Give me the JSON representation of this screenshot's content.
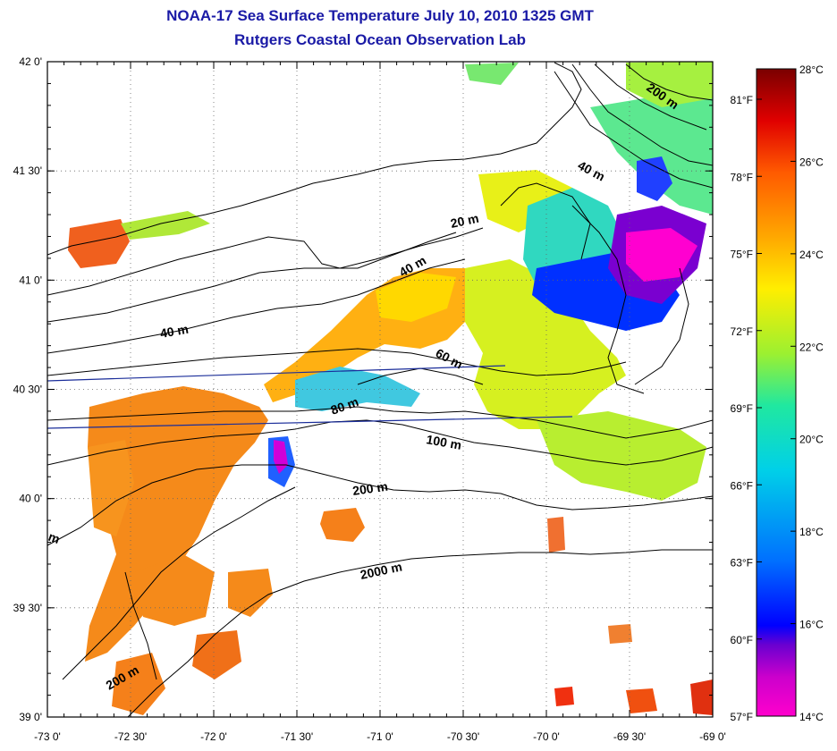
{
  "title": {
    "line1": "NOAA-17 Sea Surface Temperature July 10, 2010 1325 GMT",
    "line2": "Rutgers Coastal Ocean Observation Lab"
  },
  "axes": {
    "x_ticks": [
      "-73 0'",
      "-72 30'",
      "-72 0'",
      "-71 30'",
      "-71 0'",
      "-70 30'",
      "-70 0'",
      "-69 30'",
      "-69 0'"
    ],
    "y_ticks": [
      "42 0'",
      "41 30'",
      "41 0'",
      "40 30'",
      "40 0'",
      "39 30'",
      "39 0'"
    ],
    "lon_range": [
      -73,
      -69
    ],
    "lat_range": [
      39,
      42
    ],
    "grid": true
  },
  "contour_labels": [
    "20 m",
    "40 m",
    "40 m",
    "40 m",
    "60 m",
    "80 m",
    "100 m",
    "200 m",
    "200 m",
    "200 m",
    "2000 m",
    "m"
  ],
  "colorbar": {
    "celsius_ticks": [
      "28°C",
      "26°C",
      "24°C",
      "22°C",
      "20°C",
      "18°C",
      "16°C",
      "14°C"
    ],
    "fahrenheit_ticks": [
      "81°F",
      "78°F",
      "75°F",
      "72°F",
      "69°F",
      "66°F",
      "63°F",
      "60°F",
      "57°F"
    ],
    "range_c": [
      14,
      28
    ],
    "colors": [
      "#ff00cc",
      "#8800cc",
      "#0000ff",
      "#0090ff",
      "#00e0d0",
      "#40f080",
      "#b8f020",
      "#ffee00",
      "#ffa000",
      "#ff5000",
      "#e00000",
      "#800000"
    ]
  }
}
